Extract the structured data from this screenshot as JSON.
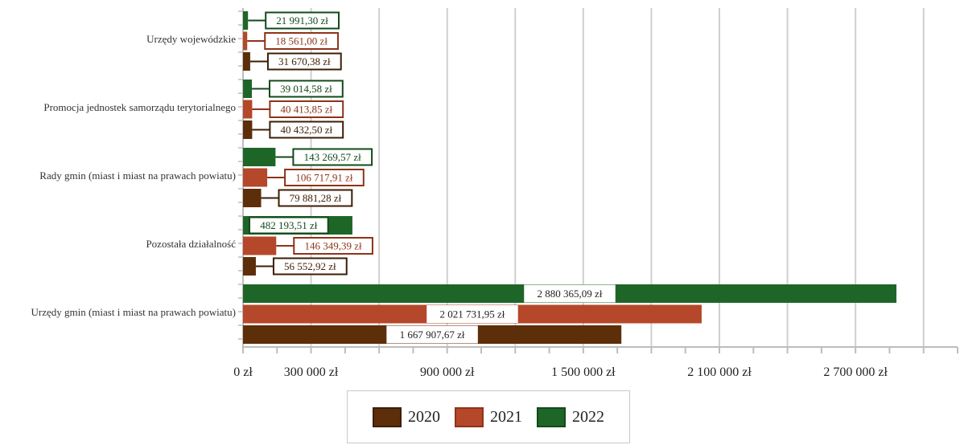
{
  "chart_data": {
    "type": "bar",
    "orientation": "horizontal",
    "categories": [
      "Urzędy wojewódzkie",
      "Promocja jednostek samorządu terytorialnego",
      "Rady gmin (miast i miast na prawach powiatu)",
      "Pozostała działalność",
      "Urzędy gmin (miast i miast na prawach powiatu)"
    ],
    "series": [
      {
        "name": "2020",
        "color": "#5c2e0a",
        "values": [
          31670.38,
          40432.5,
          79881.28,
          56552.92,
          1667907.67
        ],
        "labels": [
          "31 670,38 zł",
          "40 432,50 zł",
          "79 881,28 zł",
          "56 552,92 zł",
          "1 667 907,67 zł"
        ]
      },
      {
        "name": "2021",
        "color": "#b5472a",
        "values": [
          18561.0,
          40413.85,
          106717.91,
          146349.39,
          2021731.95
        ],
        "labels": [
          "18 561,00 zł",
          "40 413,85 zł",
          "106 717,91 zł",
          "146 349,39 zł",
          "2 021 731,95 zł"
        ]
      },
      {
        "name": "2022",
        "color": "#1e6628",
        "values": [
          21991.3,
          39014.58,
          143269.57,
          482193.51,
          2880365.09
        ],
        "labels": [
          "21 991,30 zł",
          "39 014,58 zł",
          "143 269,57 zł",
          "482 193,51 zł",
          "2 880 365,09 zł"
        ]
      }
    ],
    "xlim": [
      0,
      3150000
    ],
    "xticks": [
      0,
      300000,
      900000,
      1500000,
      2100000,
      2700000
    ],
    "xtick_labels": [
      "0 zł",
      "300 000 zł",
      "900 000 zł",
      "1 500 000 zł",
      "2 100 000 zł",
      "2 700 000 zł"
    ],
    "grid": true,
    "legend_position": "bottom"
  },
  "legend": {
    "items": [
      {
        "label": "2020",
        "color": "#5c2e0a"
      },
      {
        "label": "2021",
        "color": "#b5472a"
      },
      {
        "label": "2022",
        "color": "#1e6628"
      }
    ]
  }
}
